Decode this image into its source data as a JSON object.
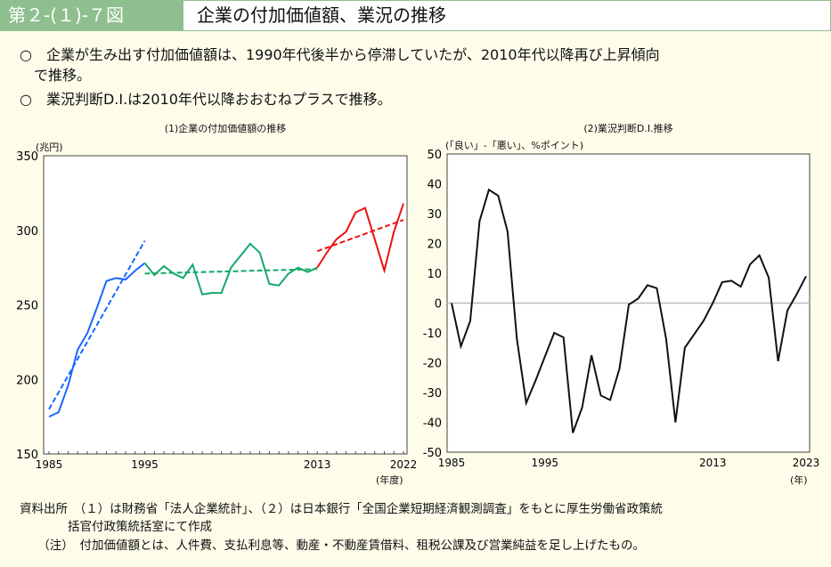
{
  "header": {
    "figure_no": "第２-(１)-７図",
    "title": "企業の付加価値額、業況の推移"
  },
  "points": [
    "○　企業が生み出す付加価値額は、1990年代後半から停滞していたが、2010年代以降再び上昇傾向",
    "　で推移。",
    "○　業況判断D.I.は2010年代以降おおむねプラスで推移。"
  ],
  "chart_data": [
    {
      "type": "line",
      "title": "(1)企業の付加価値額の推移",
      "ylabel": "(兆円)",
      "xlabel": "(年度)",
      "ylim": [
        150,
        350
      ],
      "yticks": [
        "150",
        "200",
        "250",
        "300",
        "350"
      ],
      "xticks": [
        "1985",
        "1995",
        "2013",
        "2022"
      ],
      "xlim": [
        1985,
        2022
      ],
      "series": [
        {
          "name": "1985-1995",
          "color": "#1a66ff",
          "x": [
            1985,
            1986,
            1987,
            1988,
            1989,
            1990,
            1991,
            1992,
            1993,
            1994,
            1995
          ],
          "values": [
            175,
            178,
            196,
            220,
            231,
            248,
            266,
            268,
            267,
            273,
            278
          ]
        },
        {
          "name": "1995-2013",
          "color": "#14a86a",
          "x": [
            1995,
            1996,
            1997,
            1998,
            1999,
            2000,
            2001,
            2002,
            2003,
            2004,
            2005,
            2006,
            2007,
            2008,
            2009,
            2010,
            2011,
            2012,
            2013
          ],
          "values": [
            278,
            270,
            276,
            271,
            268,
            277,
            257,
            258,
            258,
            275,
            283,
            291,
            285,
            264,
            263,
            271,
            275,
            272,
            275
          ]
        },
        {
          "name": "2013-2022",
          "color": "#ee1111",
          "x": [
            2013,
            2014,
            2015,
            2016,
            2017,
            2018,
            2019,
            2020,
            2021,
            2022
          ],
          "values": [
            275,
            285,
            294,
            299,
            312,
            315,
            294,
            273,
            299,
            318
          ]
        }
      ],
      "trends": [
        {
          "color": "#1a66ff",
          "x": [
            1985,
            1995
          ],
          "values": [
            180,
            293
          ]
        },
        {
          "color": "#14a86a",
          "x": [
            1995,
            2013
          ],
          "values": [
            271,
            274
          ]
        },
        {
          "color": "#ee1111",
          "x": [
            2013,
            2022
          ],
          "values": [
            286,
            307
          ]
        }
      ]
    },
    {
      "type": "line",
      "title": "(2)業況判断D.I.推移",
      "ylabel": "(「良い」-「悪い」、%ポイント)",
      "xlabel": "(年)",
      "ylim": [
        -50,
        50
      ],
      "yticks": [
        "-50",
        "-40",
        "-30",
        "-20",
        "-10",
        "0",
        "10",
        "20",
        "30",
        "40",
        "50"
      ],
      "xticks": [
        "1985",
        "1995",
        "2013",
        "2023"
      ],
      "xlim": [
        1985,
        2023
      ],
      "series": [
        {
          "name": "業況判断D.I.",
          "color": "#111111",
          "x": [
            1985,
            1986,
            1987,
            1988,
            1989,
            1990,
            1991,
            1992,
            1993,
            1994,
            1995,
            1996,
            1997,
            1998,
            1999,
            2000,
            2001,
            2002,
            2003,
            2004,
            2005,
            2006,
            2007,
            2008,
            2009,
            2010,
            2011,
            2012,
            2013,
            2014,
            2015,
            2016,
            2017,
            2018,
            2019,
            2020,
            2021,
            2022,
            2023
          ],
          "values": [
            0,
            -14.5,
            -6,
            27.5,
            38,
            36,
            24,
            -12,
            -33.5,
            -26,
            -18,
            -10,
            -11.5,
            -43.5,
            -35,
            -17.5,
            -31,
            -32.5,
            -22,
            -0.5,
            1.5,
            6,
            5,
            -12,
            -40,
            -15,
            -10.5,
            -6,
            0,
            7,
            7.5,
            5.5,
            13,
            16,
            8.5,
            -19.5,
            -2.5,
            3,
            9
          ]
        }
      ]
    }
  ],
  "footer": [
    "資料出所　（１）は財務省「法人企業統計」、（２）は日本銀行「全国企業短期経済観測調査」をもとに厚生労働省政策統",
    "　　　　括官付政策統括室にて作成",
    "　　（注）　付加価値額とは、人件費、支払利息等、動産・不動産賃借料、租税公課及び営業純益を足し上げたもの。"
  ]
}
